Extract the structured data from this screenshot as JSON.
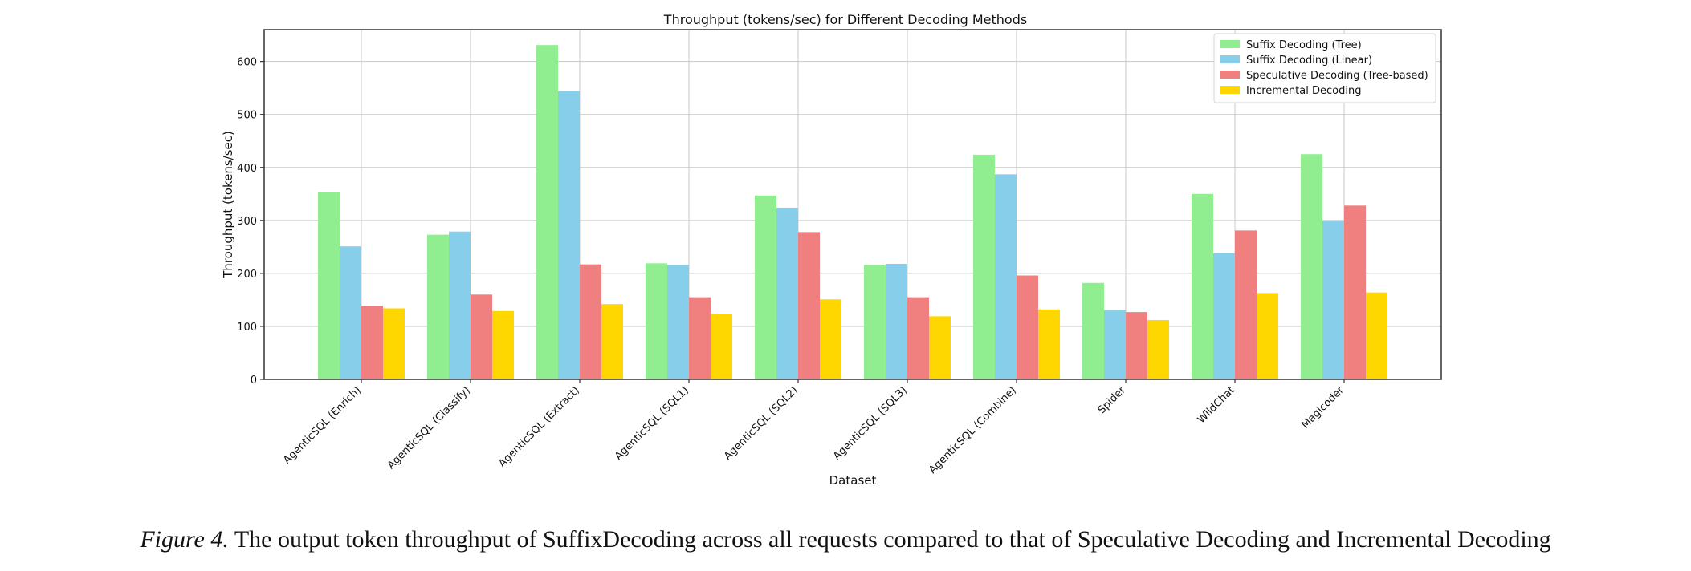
{
  "chart_data": {
    "type": "bar",
    "title": "Throughput (tokens/sec) for Different Decoding Methods",
    "xlabel": "Dataset",
    "ylabel": "Throughput (tokens/sec)",
    "ylim": [
      0,
      660
    ],
    "yticks": [
      0,
      100,
      200,
      300,
      400,
      500,
      600
    ],
    "grid": true,
    "legend_position": "top-right",
    "categories": [
      "AgenticSQL (Enrich)",
      "AgenticSQL (Classify)",
      "AgenticSQL (Extract)",
      "AgenticSQL (SQL1)",
      "AgenticSQL (SQL2)",
      "AgenticSQL (SQL3)",
      "AgenticSQL (Combine)",
      "Spider",
      "WildChat",
      "Magicoder"
    ],
    "series": [
      {
        "name": "Suffix Decoding (Tree)",
        "color": "#90ee90",
        "values": [
          353,
          273,
          631,
          219,
          347,
          216,
          424,
          182,
          350,
          425
        ]
      },
      {
        "name": "Suffix Decoding (Linear)",
        "color": "#87ceeb",
        "values": [
          251,
          279,
          544,
          216,
          324,
          218,
          387,
          131,
          238,
          300
        ]
      },
      {
        "name": "Speculative Decoding (Tree-based)",
        "color": "#f08080",
        "values": [
          139,
          160,
          217,
          155,
          278,
          155,
          196,
          127,
          281,
          328
        ]
      },
      {
        "name": "Incremental Decoding",
        "color": "#ffd700",
        "values": [
          134,
          129,
          142,
          124,
          151,
          119,
          132,
          112,
          163,
          164
        ]
      }
    ]
  },
  "caption": {
    "figure_label": "Figure 4.",
    "text": " The output token throughput of SuffixDecoding across all requests compared to that of Speculative Decoding and Incremental Decoding"
  }
}
